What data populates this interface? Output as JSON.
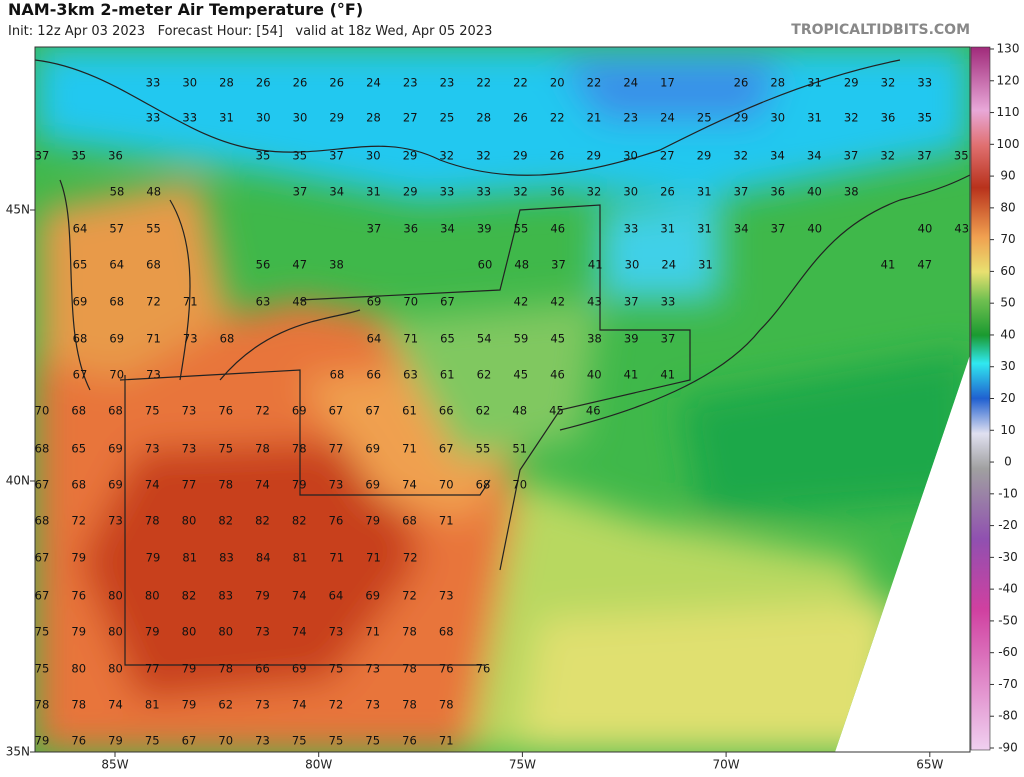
{
  "header": {
    "title": "NAM-3km 2-meter Air Temperature (°F)",
    "subtitle": "Init: 12z Apr 03 2023   Forecast Hour: [54]   valid at 18z Wed, Apr 05 2023",
    "brand": "TROPICALTIDBITS.COM"
  },
  "lat_labels": [
    "45N",
    "40N",
    "35N"
  ],
  "lon_labels": [
    "85W",
    "80W",
    "75W",
    "70W",
    "65W"
  ],
  "colorbar": {
    "ticks": [
      130,
      120,
      110,
      100,
      90,
      80,
      70,
      60,
      50,
      40,
      30,
      20,
      10,
      0,
      -10,
      -20,
      -30,
      -40,
      -50,
      -60,
      -70,
      -80,
      -90
    ]
  },
  "station_values": [
    [
      33,
      30,
      28,
      26,
      26,
      26,
      24,
      23,
      23,
      22,
      22,
      20,
      22,
      24,
      17
    ],
    [
      26,
      28,
      31,
      29,
      32,
      33
    ],
    [
      33,
      33,
      31,
      30,
      30,
      29,
      28,
      27,
      25,
      28,
      26,
      22,
      21,
      23,
      24,
      25,
      29,
      30,
      31,
      32,
      36,
      35
    ],
    [
      37,
      35,
      36
    ],
    [
      35,
      35,
      37,
      30,
      29,
      32,
      32,
      29,
      26,
      29,
      30,
      27,
      29,
      32,
      34,
      34,
      37,
      32,
      37,
      35
    ],
    [
      58,
      48
    ],
    [
      37,
      34,
      31,
      29,
      33,
      33,
      32,
      36,
      32,
      30,
      26,
      31,
      37,
      36,
      40,
      38
    ],
    [
      64,
      57,
      55
    ],
    [
      37,
      36,
      34,
      39,
      55,
      46
    ],
    [
      33,
      31,
      31,
      34,
      37,
      40
    ],
    [
      40,
      43
    ],
    [
      65,
      64,
      68
    ],
    [
      56,
      47,
      38
    ],
    [
      60,
      48,
      37,
      41,
      30,
      24,
      31
    ],
    [
      41,
      47
    ],
    [
      69,
      68,
      72,
      71
    ],
    [
      63,
      48
    ],
    [
      69,
      70,
      67
    ],
    [
      42,
      42,
      43,
      37,
      33
    ],
    [
      68,
      69,
      71,
      73,
      68
    ],
    [
      64,
      71,
      65,
      54,
      59,
      45,
      38,
      39,
      37
    ],
    [
      67,
      70,
      73
    ],
    [
      68,
      66,
      63,
      61,
      62,
      45,
      46,
      40,
      41,
      41
    ],
    [
      70,
      68,
      68,
      75,
      73,
      76,
      72,
      69,
      67,
      67,
      61,
      66,
      62,
      48,
      45,
      46
    ],
    [
      68,
      65,
      69,
      73,
      73,
      75,
      78,
      78,
      77,
      69,
      71,
      67,
      55,
      51
    ],
    [
      67,
      68,
      69,
      74,
      77,
      78,
      74,
      79,
      73,
      69,
      74,
      70,
      68,
      70
    ],
    [
      68,
      72,
      73,
      78,
      80,
      82,
      82,
      82,
      76,
      79,
      68,
      71
    ],
    [
      67,
      79
    ],
    [
      79,
      81,
      83,
      84,
      81,
      71,
      71,
      72
    ],
    [
      67,
      76,
      80,
      80,
      82,
      83,
      79,
      74,
      64,
      69,
      72,
      73
    ],
    [
      75,
      79,
      80,
      79,
      80,
      80,
      73,
      74,
      73,
      71,
      78,
      68
    ],
    [
      75,
      80,
      80,
      77,
      79,
      78,
      66,
      69,
      75,
      73,
      78,
      76,
      76
    ],
    [
      78,
      78,
      74,
      81,
      79,
      62,
      73,
      74,
      72,
      73,
      78,
      78
    ],
    [
      79,
      76,
      79,
      75,
      67,
      70,
      73,
      75,
      75,
      75,
      76,
      71
    ]
  ]
}
